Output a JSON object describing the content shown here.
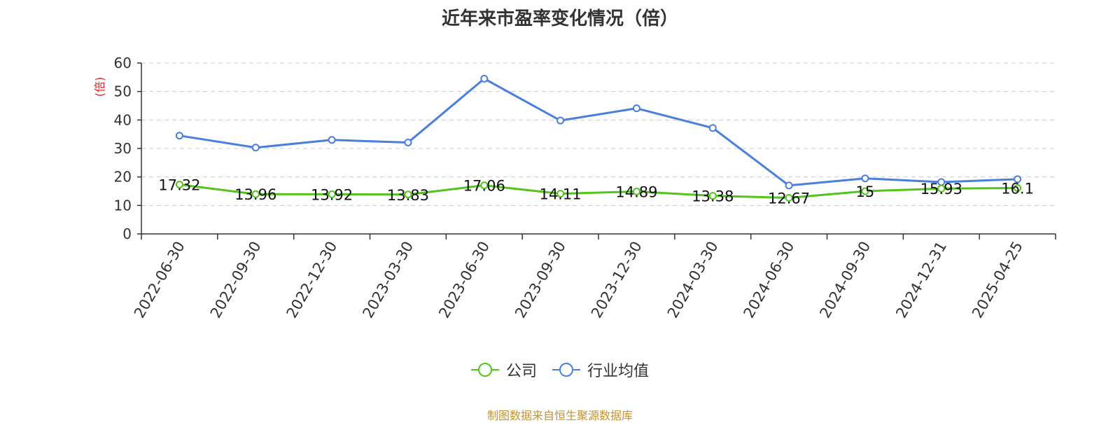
{
  "chart_data": {
    "type": "line",
    "title": "近年来市盈率变化情况（倍）",
    "ylabel": "(倍)",
    "xlabel": "",
    "ylim": [
      0,
      60
    ],
    "yticks": [
      0,
      10,
      20,
      30,
      40,
      50,
      60
    ],
    "grid": true,
    "legend_position": "bottom-center",
    "categories": [
      "2022-06-30",
      "2022-09-30",
      "2022-12-30",
      "2023-03-30",
      "2023-06-30",
      "2023-09-30",
      "2023-12-30",
      "2024-03-30",
      "2024-06-30",
      "2024-09-30",
      "2024-12-31",
      "2025-04-25"
    ],
    "series": [
      {
        "name": "公司",
        "color": "#52c41a",
        "values": [
          17.32,
          13.96,
          13.92,
          13.83,
          17.06,
          14.11,
          14.89,
          13.38,
          12.67,
          15,
          15.93,
          16.1
        ],
        "labels": [
          "17.32",
          "13.96",
          "13.92",
          "13.83",
          "17.06",
          "14.11",
          "14.89",
          "13.38",
          "12.67",
          "15",
          "15.93",
          "16.1"
        ]
      },
      {
        "name": "行业均值",
        "color": "#4a7fdc",
        "values": [
          34.5,
          30.3,
          33.0,
          32.1,
          54.5,
          39.8,
          44.1,
          37.2,
          17.0,
          19.5,
          18.2,
          19.2
        ]
      }
    ],
    "source_note": "制图数据来自恒生聚源数据库"
  }
}
